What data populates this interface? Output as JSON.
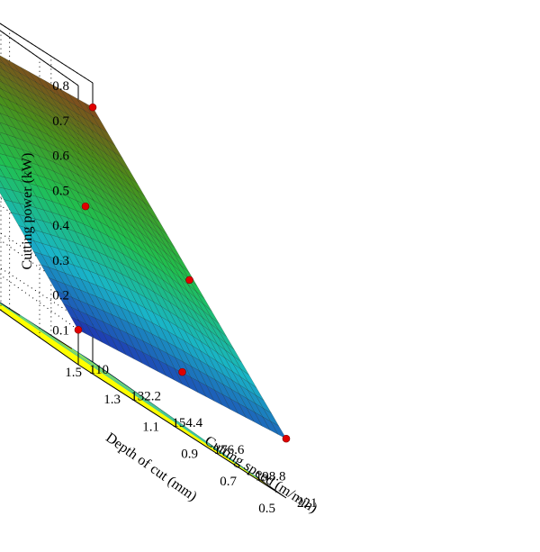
{
  "chart_data": {
    "type": "surface",
    "title": "",
    "zlabel": "Cutting power (kW)",
    "xlabel": "Cutting speed (m/min)",
    "ylabel": "Depth of cut (mm)",
    "x_ticks": [
      "110",
      "132.2",
      "154.4",
      "176.6",
      "198.8",
      "221"
    ],
    "y_ticks": [
      "0.5",
      "0.7",
      "0.9",
      "1.1",
      "1.3",
      "1.5"
    ],
    "z_ticks": [
      "0.1",
      "0.2",
      "0.3",
      "0.4",
      "0.5",
      "0.6",
      "0.7",
      "0.8"
    ],
    "xlim": [
      110,
      221
    ],
    "ylim": [
      0.5,
      1.5
    ],
    "zlim": [
      0,
      0.8
    ],
    "surface_corners": [
      {
        "speed": 221,
        "depth": 1.5,
        "power": 0.73
      },
      {
        "speed": 110,
        "depth": 1.5,
        "power": 0.68
      },
      {
        "speed": 110,
        "depth": 0.5,
        "power": 0.1
      },
      {
        "speed": 221,
        "depth": 0.5,
        "power": 0.17
      }
    ],
    "design_points": [
      {
        "speed": 221,
        "depth": 1.5,
        "power": 0.73
      },
      {
        "speed": 110,
        "depth": 0.5,
        "power": 0.1
      },
      {
        "speed": 221,
        "depth": 1.0,
        "power": 0.43
      },
      {
        "speed": 110,
        "depth": 1.0,
        "power": 0.4
      },
      {
        "speed": 165.5,
        "depth": 1.0,
        "power": 0.45
      },
      {
        "speed": 165.5,
        "depth": 1.5,
        "power": 0.78
      },
      {
        "speed": 110,
        "depth": 1.5,
        "power": 0.7
      },
      {
        "speed": 165.5,
        "depth": 0.5,
        "power": 0.17
      },
      {
        "speed": 221,
        "depth": 0.5,
        "power": 0.17
      }
    ],
    "floor_color": "#ffff00",
    "point_color": "#e00000",
    "colormap": [
      "#1f2fb0",
      "#19b5c8",
      "#20c050",
      "#4a8f1a",
      "#8f3a1e"
    ],
    "grid": true
  }
}
